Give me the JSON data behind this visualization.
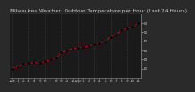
{
  "title": "Milwaukee Weather  Outdoor Temperature per Hour (Last 24 Hours)",
  "hours": [
    0,
    1,
    2,
    3,
    4,
    5,
    6,
    7,
    8,
    9,
    10,
    11,
    12,
    13,
    14,
    15,
    16,
    17,
    18,
    19,
    20,
    21,
    22,
    23
  ],
  "temps": [
    10,
    12,
    15,
    16,
    17,
    16,
    18,
    20,
    22,
    28,
    30,
    32,
    33,
    34,
    35,
    37,
    38,
    40,
    45,
    48,
    52,
    54,
    56,
    60
  ],
  "line_color": "#ff0000",
  "marker_color": "#000000",
  "bg_color": "#2a2a2a",
  "plot_bg": "#1a1a1a",
  "grid_color": "#555555",
  "title_color": "#cccccc",
  "axis_color": "#888888",
  "tick_color": "#cccccc",
  "ylim": [
    0,
    70
  ],
  "ytick_vals": [
    10,
    20,
    30,
    40,
    50,
    60
  ],
  "ytick_labels": [
    "10",
    "20",
    "30",
    "40",
    "50",
    "60"
  ],
  "xtick_positions": [
    0,
    1,
    2,
    3,
    4,
    5,
    6,
    7,
    8,
    9,
    10,
    11,
    12,
    13,
    14,
    15,
    16,
    17,
    18,
    19,
    20,
    21,
    22,
    23
  ],
  "xtick_labels": [
    "12a",
    "1",
    "2",
    "3",
    "4",
    "5",
    "6",
    "7",
    "8",
    "9",
    "10",
    "11",
    "12p",
    "1",
    "2",
    "3",
    "4",
    "5",
    "6",
    "7",
    "8",
    "9",
    "10",
    "11"
  ],
  "grid_x_positions": [
    0,
    3,
    6,
    9,
    12,
    15,
    18,
    21
  ],
  "title_fontsize": 4.2,
  "tick_fontsize": 3.0,
  "line_width": 0.6,
  "marker_size": 1.4
}
